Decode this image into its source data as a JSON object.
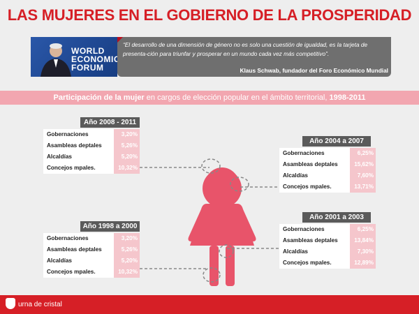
{
  "header": {
    "title": "LAS MUJERES EN EL GOBIERNO DE LA PROSPERIDAD"
  },
  "quote": {
    "text": "“El desarrollo de una dimensión de género no es solo una cuestión de igualdad, es la tarjeta de presenta-ción para triunfar y prosperar en un mundo cada vez más competitivo”.",
    "author": "Klaus Schwab, fundador del Foro Económico Mundial",
    "photo_logo": [
      "WORLD",
      "ECONOMIC",
      "FORUM"
    ]
  },
  "banner": {
    "part1": "Participación de la mujer",
    "part2": " en cargos de elección popular en el ámbito territorial, ",
    "part3": "1998-2011"
  },
  "tables": [
    {
      "title": "Año 2008 - 2011",
      "rows": [
        {
          "label": "Gobernaciones",
          "value": "3,20%"
        },
        {
          "label": "Asambleas deptales",
          "value": "5,26%"
        },
        {
          "label": "Alcaldías",
          "value": "5,20%"
        },
        {
          "label": "Concejos mpales.",
          "value": "10,32%"
        }
      ]
    },
    {
      "title": "Año 2004 a 2007",
      "rows": [
        {
          "label": "Gobernaciones",
          "value": "6,25%"
        },
        {
          "label": "Asambleas deptales",
          "value": "15,62%"
        },
        {
          "label": "Alcaldías",
          "value": "7,60%"
        },
        {
          "label": "Concejos mpales.",
          "value": "13,71%"
        }
      ]
    },
    {
      "title": "Año 1998 a 2000",
      "rows": [
        {
          "label": "Gobernaciones",
          "value": "3,20%"
        },
        {
          "label": "Asambleas deptales",
          "value": "5,26%"
        },
        {
          "label": "Alcaldías",
          "value": "5,20%"
        },
        {
          "label": "Concejos mpales.",
          "value": "10,32%"
        }
      ]
    },
    {
      "title": "Año 2001 a 2003",
      "rows": [
        {
          "label": "Gobernaciones",
          "value": "6,25%"
        },
        {
          "label": "Asambleas deptales",
          "value": "13,84%"
        },
        {
          "label": "Alcaldías",
          "value": "7,30%"
        },
        {
          "label": "Concejos mpales.",
          "value": "12,89%"
        }
      ]
    }
  ],
  "footer": {
    "brand": "urna de cristal"
  },
  "colors": {
    "red": "#d61f26",
    "pink": "#f2a6b0",
    "figure": "#e8546a",
    "gray": "#5a5a5a"
  }
}
